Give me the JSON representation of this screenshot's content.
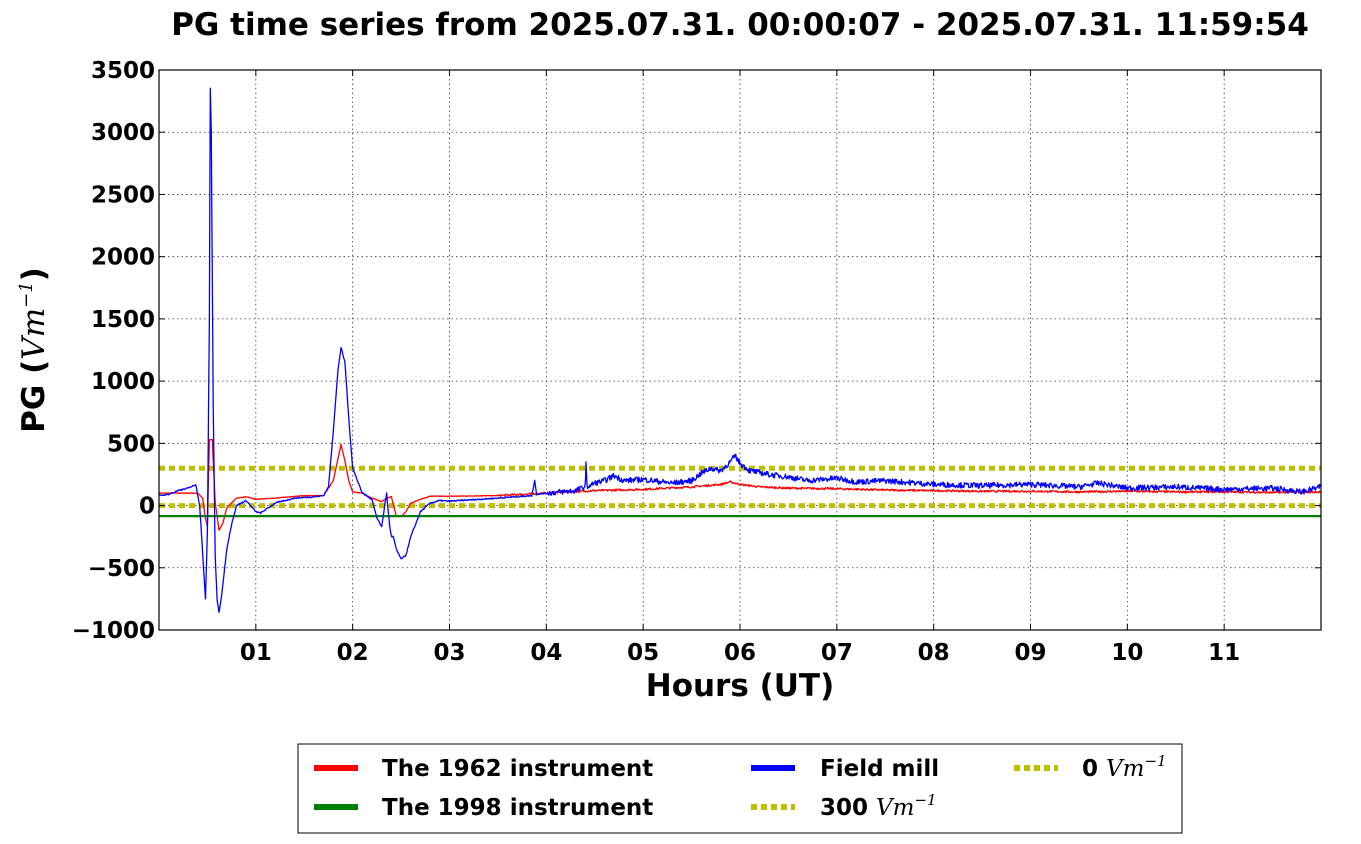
{
  "chart_data": {
    "type": "line",
    "title": "PG time series from 2025.07.31. 00:00:07 - 2025.07.31. 11:59:54",
    "xlabel": "Hours (UT)",
    "ylabel_prefix": "PG (",
    "ylabel_unit": "Vm",
    "ylabel_exp": "−1",
    "ylabel_suffix": ")",
    "xlim": [
      0,
      12
    ],
    "ylim": [
      -1000,
      3500
    ],
    "grid": true,
    "legend_position": "bottom-center",
    "x_ticks": [
      1,
      2,
      3,
      4,
      5,
      6,
      7,
      8,
      9,
      10,
      11
    ],
    "x_tick_labels": [
      "01",
      "02",
      "03",
      "04",
      "05",
      "06",
      "07",
      "08",
      "09",
      "10",
      "11"
    ],
    "y_ticks": [
      -1000,
      -500,
      0,
      500,
      1000,
      1500,
      2000,
      2500,
      3000,
      3500
    ],
    "y_tick_labels": [
      "−1000",
      "−500",
      "0",
      "500",
      "1000",
      "1500",
      "2000",
      "2500",
      "3000",
      "3500"
    ],
    "series": [
      {
        "name": "The 1962 instrument",
        "color": "#ff0000",
        "style": "solid",
        "x": [
          0,
          0.2,
          0.4,
          0.45,
          0.48,
          0.5,
          0.52,
          0.55,
          0.58,
          0.62,
          0.66,
          0.7,
          0.8,
          0.9,
          1.0,
          1.2,
          1.5,
          1.7,
          1.8,
          1.85,
          1.88,
          1.92,
          1.96,
          2.0,
          2.1,
          2.2,
          2.3,
          2.35,
          2.4,
          2.45,
          2.5,
          2.55,
          2.6,
          2.7,
          2.8,
          3.0,
          3.5,
          4.0,
          4.5,
          5.0,
          5.5,
          5.8,
          5.9,
          6.0,
          6.2,
          6.5,
          7.0,
          7.5,
          8.0,
          8.5,
          9.0,
          9.5,
          10.0,
          10.5,
          11.0,
          11.5,
          12.0
        ],
        "y": [
          100,
          100,
          100,
          60,
          -100,
          -170,
          530,
          530,
          30,
          -200,
          -140,
          -20,
          60,
          70,
          50,
          60,
          80,
          80,
          200,
          380,
          490,
          360,
          200,
          110,
          100,
          60,
          30,
          60,
          70,
          -80,
          -90,
          -50,
          20,
          50,
          75,
          75,
          80,
          100,
          120,
          130,
          150,
          170,
          190,
          170,
          150,
          140,
          135,
          125,
          120,
          115,
          115,
          110,
          115,
          110,
          110,
          105,
          110
        ]
      },
      {
        "name": "The 1998 instrument",
        "color": "#008000",
        "style": "solid",
        "x": [
          0,
          12
        ],
        "y": [
          -85,
          -85
        ]
      },
      {
        "name": "Field mill",
        "color": "#0000ff",
        "style": "solid",
        "x": [
          0,
          0.1,
          0.2,
          0.3,
          0.38,
          0.42,
          0.46,
          0.48,
          0.5,
          0.52,
          0.53,
          0.54,
          0.56,
          0.58,
          0.6,
          0.62,
          0.65,
          0.7,
          0.75,
          0.8,
          0.9,
          1.0,
          1.05,
          1.2,
          1.4,
          1.6,
          1.7,
          1.75,
          1.8,
          1.85,
          1.88,
          1.92,
          1.96,
          2.0,
          2.1,
          2.2,
          2.25,
          2.3,
          2.35,
          2.38,
          2.4,
          2.42,
          2.45,
          2.5,
          2.55,
          2.6,
          2.7,
          2.8,
          2.9,
          3.0,
          3.5,
          3.85,
          3.88,
          3.9,
          4.0,
          4.3,
          4.4,
          4.41,
          4.42,
          4.5,
          4.6,
          4.7,
          4.8,
          5.0,
          5.3,
          5.5,
          5.6,
          5.7,
          5.8,
          5.9,
          5.95,
          6.0,
          6.1,
          6.3,
          6.5,
          6.7,
          7.0,
          7.2,
          7.5,
          8.0,
          8.5,
          9.0,
          9.5,
          9.7,
          10.0,
          10.5,
          11.0,
          11.5,
          11.8,
          12.0
        ],
        "y": [
          80,
          90,
          120,
          140,
          170,
          0,
          -500,
          -750,
          -200,
          1500,
          3350,
          3000,
          800,
          -400,
          -760,
          -860,
          -700,
          -350,
          -150,
          0,
          40,
          -50,
          -60,
          20,
          60,
          70,
          80,
          150,
          600,
          1100,
          1270,
          1150,
          700,
          300,
          100,
          50,
          -100,
          -170,
          100,
          -150,
          -250,
          -250,
          -350,
          -430,
          -400,
          -250,
          -50,
          20,
          40,
          35,
          60,
          80,
          200,
          90,
          100,
          120,
          150,
          340,
          150,
          180,
          200,
          240,
          200,
          210,
          180,
          200,
          260,
          300,
          280,
          350,
          400,
          340,
          280,
          250,
          230,
          200,
          220,
          190,
          200,
          170,
          160,
          170,
          150,
          180,
          140,
          150,
          130,
          140,
          110,
          150
        ]
      },
      {
        "name": "300 Vm⁻¹",
        "legend_main": "300",
        "legend_unit": "Vm",
        "legend_exp": "−1",
        "color": "#bfbf00",
        "style": "dotted",
        "x": [
          0,
          12
        ],
        "y": [
          300,
          300
        ]
      },
      {
        "name": "0 Vm⁻¹",
        "legend_main": "0",
        "legend_unit": "Vm",
        "legend_exp": "−1",
        "color": "#bfbf00",
        "style": "dotted",
        "x": [
          0,
          12
        ],
        "y": [
          0,
          0
        ]
      }
    ]
  }
}
